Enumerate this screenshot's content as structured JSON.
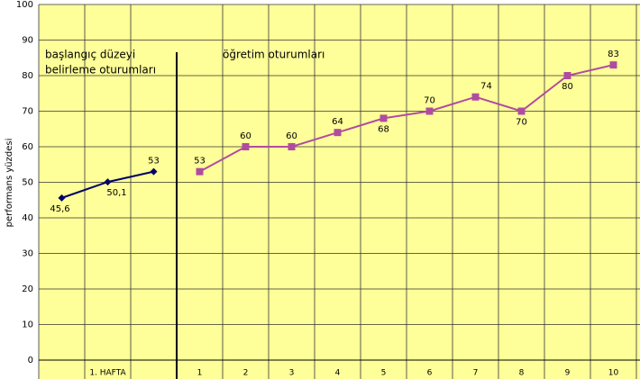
{
  "chart_data": {
    "type": "line",
    "y_label": "performans yüzdesi",
    "annotations": [
      "başlangıç düzeyi",
      "belirleme oturumları",
      "öğretim oturumları"
    ],
    "categories": [
      null,
      "1. HAFTA",
      null,
      "1",
      "2",
      "3",
      "4",
      "5",
      "6",
      "7",
      "8",
      "9",
      "10"
    ],
    "series": [
      {
        "color": "#000066",
        "marker": "diamond",
        "values": [
          45.6,
          50.1,
          53,
          null,
          null,
          null,
          null,
          null,
          null,
          null,
          null,
          null,
          null
        ],
        "value_labels": [
          "45,6",
          "50,1",
          "53",
          null,
          null,
          null,
          null,
          null,
          null,
          null,
          null,
          null,
          null
        ]
      },
      {
        "color": "#b04ca0",
        "marker": "square",
        "values": [
          null,
          null,
          null,
          53,
          60,
          60,
          64,
          68,
          70,
          74,
          70,
          80,
          83
        ]
      }
    ],
    "ylim": [
      0,
      100
    ],
    "yticks": [
      0,
      10,
      20,
      30,
      40,
      50,
      60,
      70,
      80,
      90,
      100
    ],
    "grid": true,
    "background": "#ffff99"
  }
}
